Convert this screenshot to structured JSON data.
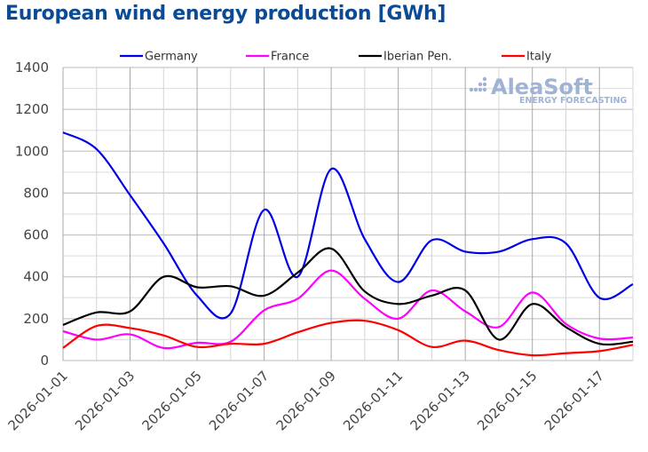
{
  "chart_data": {
    "type": "line",
    "title": "European wind energy production [GWh]",
    "xlabel": "",
    "ylabel": "",
    "ylim": [
      0,
      1400
    ],
    "yticks": [
      "0",
      "200",
      "400",
      "600",
      "800",
      "1000",
      "1200",
      "1400"
    ],
    "grid": true,
    "legend_position": "top",
    "x": [
      "2026-01-01",
      "2026-01-02",
      "2026-01-03",
      "2026-01-04",
      "2026-01-05",
      "2026-01-06",
      "2026-01-07",
      "2026-01-08",
      "2026-01-09",
      "2026-01-10",
      "2026-01-11",
      "2026-01-12",
      "2026-01-13",
      "2026-01-14",
      "2026-01-15",
      "2026-01-16",
      "2026-01-17",
      "2026-01-18"
    ],
    "xtick_labels": [
      "2026-01-01",
      "2026-01-03",
      "2026-01-05",
      "2026-01-07",
      "2026-01-09",
      "2026-01-11",
      "2026-01-13",
      "2026-01-15",
      "2026-01-17"
    ],
    "series": [
      {
        "name": "Germany",
        "color": "#0000e6",
        "values": [
          1090,
          1010,
          790,
          560,
          310,
          225,
          720,
          400,
          915,
          580,
          375,
          575,
          520,
          520,
          580,
          560,
          300,
          365
        ]
      },
      {
        "name": "France",
        "color": "#ff00ff",
        "values": [
          140,
          100,
          125,
          60,
          85,
          90,
          240,
          295,
          430,
          295,
          200,
          335,
          235,
          160,
          325,
          175,
          105,
          110
        ]
      },
      {
        "name": "Iberian Pen.",
        "color": "#000000",
        "values": [
          170,
          230,
          235,
          400,
          350,
          355,
          310,
          420,
          535,
          330,
          270,
          310,
          335,
          100,
          270,
          160,
          80,
          90
        ]
      },
      {
        "name": "Italy",
        "color": "#ff0000",
        "values": [
          60,
          165,
          155,
          120,
          65,
          80,
          80,
          135,
          180,
          190,
          145,
          65,
          95,
          50,
          25,
          35,
          45,
          75
        ]
      }
    ]
  },
  "watermark": {
    "main": "AleaSoft",
    "sub": "ENERGY FORECASTING"
  }
}
